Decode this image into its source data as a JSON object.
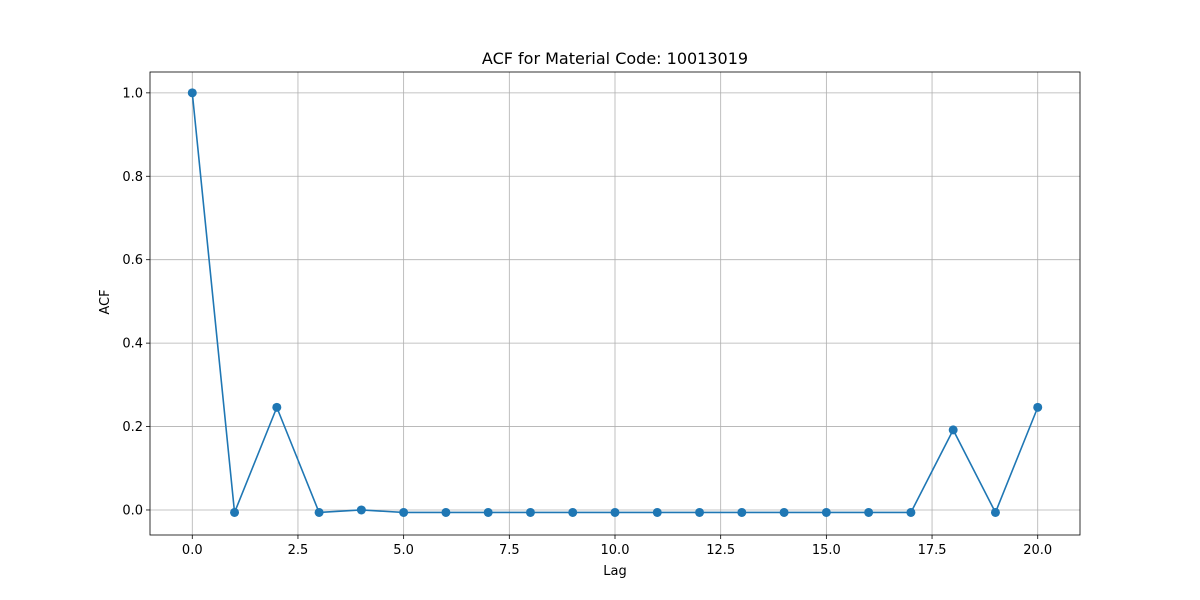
{
  "chart_data": {
    "type": "line",
    "title": "ACF for Material Code: 10013019",
    "xlabel": "Lag",
    "ylabel": "ACF",
    "grid": true,
    "marker": "circle",
    "color": "#1f77b4",
    "xlim": [
      -1,
      21
    ],
    "ylim": [
      -0.06,
      1.05
    ],
    "x_ticks": [
      0.0,
      2.5,
      5.0,
      7.5,
      10.0,
      12.5,
      15.0,
      17.5,
      20.0
    ],
    "x_tick_labels": [
      "0.0",
      "2.5",
      "5.0",
      "7.5",
      "10.0",
      "12.5",
      "15.0",
      "17.5",
      "20.0"
    ],
    "y_ticks": [
      0.0,
      0.2,
      0.4,
      0.6,
      0.8,
      1.0
    ],
    "y_tick_labels": [
      "0.0",
      "0.2",
      "0.4",
      "0.6",
      "0.8",
      "1.0"
    ],
    "x": [
      0,
      1,
      2,
      3,
      4,
      5,
      6,
      7,
      8,
      9,
      10,
      11,
      12,
      13,
      14,
      15,
      16,
      17,
      18,
      19,
      20
    ],
    "y": [
      1.0,
      -0.006,
      0.246,
      -0.006,
      0.0,
      -0.006,
      -0.006,
      -0.006,
      -0.006,
      -0.006,
      -0.006,
      -0.006,
      -0.006,
      -0.006,
      -0.006,
      -0.006,
      -0.006,
      -0.006,
      0.192,
      -0.006,
      0.246
    ]
  }
}
